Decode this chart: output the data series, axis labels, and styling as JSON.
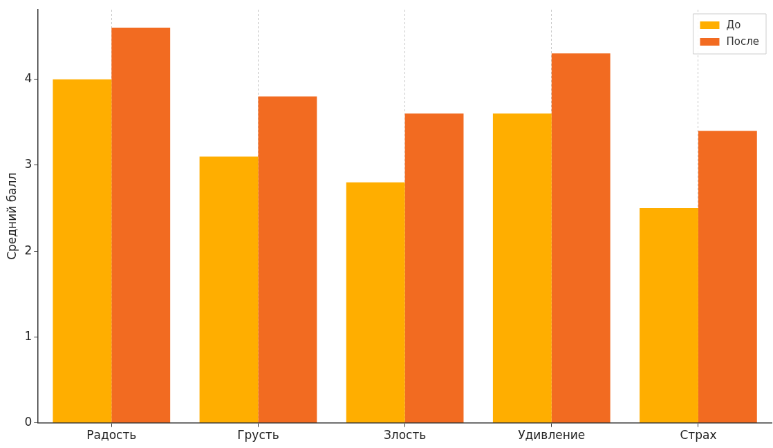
{
  "chart_data": {
    "type": "bar",
    "ylabel": "Средний балл",
    "categories": [
      "Радость",
      "Грусть",
      "Злость",
      "Удивление",
      "Страх"
    ],
    "series": [
      {
        "name": "До",
        "color": "#ffae00",
        "values": [
          4.0,
          3.1,
          2.8,
          3.6,
          2.5
        ]
      },
      {
        "name": "После",
        "color": "#f26b21",
        "values": [
          4.6,
          3.8,
          3.6,
          4.3,
          3.4
        ]
      }
    ],
    "ylim": [
      0,
      4.81
    ],
    "yticks": [
      0,
      1,
      2,
      3,
      4
    ],
    "grid": "x",
    "legend": "top right"
  }
}
